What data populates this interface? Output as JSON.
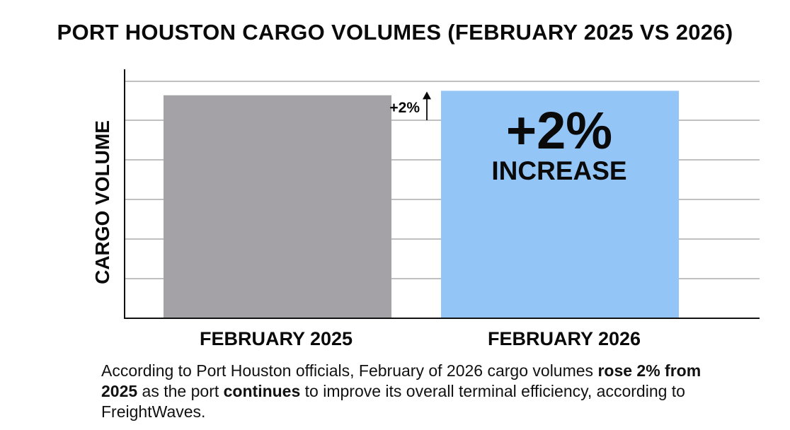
{
  "chart_data": {
    "type": "bar",
    "title": "PORT HOUSTON CARGO VOLUMES (FEBRUARY 2025 VS 2026)",
    "ylabel": "CARGO VOLUME",
    "xlabel": "",
    "categories": [
      "FEBRUARY 2025",
      "FEBRUARY 2026"
    ],
    "values": [
      100,
      102
    ],
    "ylim": [
      0,
      111
    ],
    "grid": true,
    "bar_colors": [
      "#a5a2a7",
      "#94c5f7"
    ],
    "annotations": {
      "small_change": "+2%",
      "big_change": "+2%",
      "big_change_word": "INCREASE"
    }
  },
  "caption": {
    "p1": "According to Port Houston officials, February of 2026 cargo volumes ",
    "b1": "rose 2% from 2025",
    "p2": " as the port ",
    "b2": "continues",
    "p3": " to improve its overall terminal efficiency, according to FreightWaves."
  }
}
